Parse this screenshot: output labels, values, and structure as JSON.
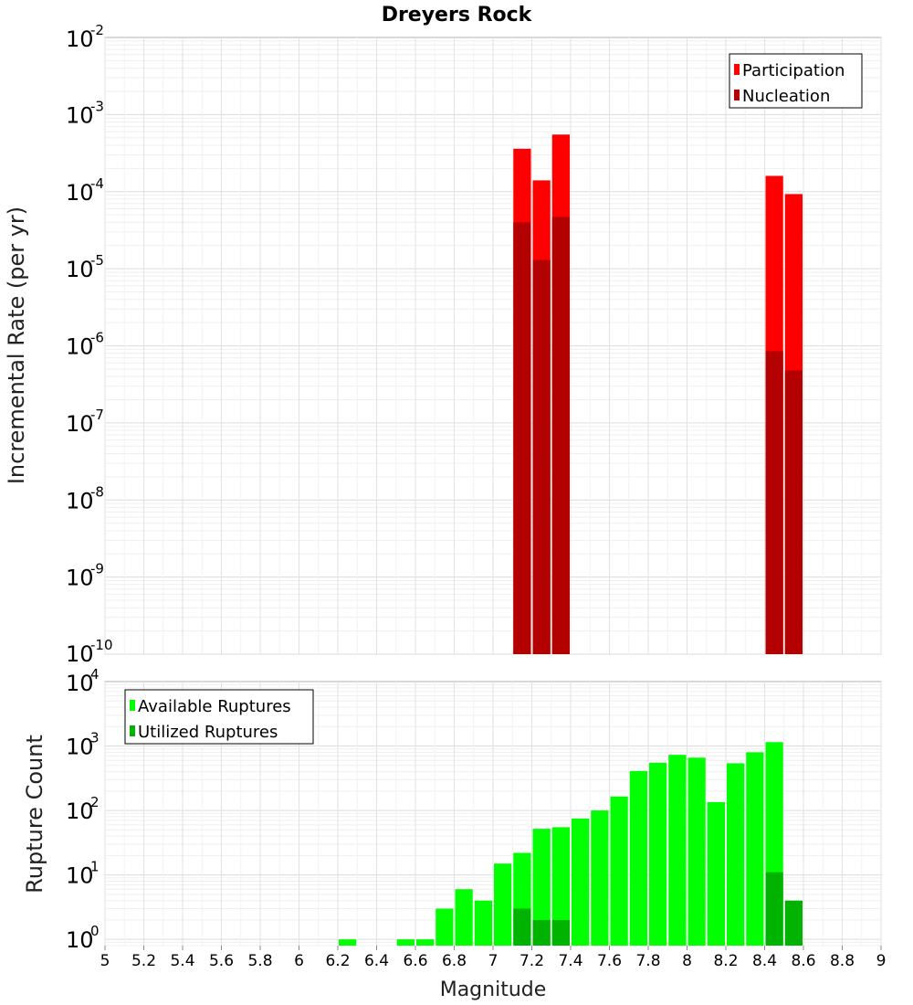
{
  "chart_data": [
    {
      "type": "bar",
      "title": "Dreyers Rock",
      "xlabel": "",
      "ylabel": "Incremental Rate (per yr)",
      "yscale": "log",
      "xlim": [
        5,
        9
      ],
      "ylim": [
        1e-10,
        0.01
      ],
      "y_ticks": [
        {
          "base": "10",
          "exp": "-2",
          "value": 0.01
        },
        {
          "base": "10",
          "exp": "-3",
          "value": 0.001
        },
        {
          "base": "10",
          "exp": "-4",
          "value": 0.0001
        },
        {
          "base": "10",
          "exp": "-5",
          "value": 1e-05
        },
        {
          "base": "10",
          "exp": "-6",
          "value": 1e-06
        },
        {
          "base": "10",
          "exp": "-7",
          "value": 1e-07
        },
        {
          "base": "10",
          "exp": "-8",
          "value": 1e-08
        },
        {
          "base": "10",
          "exp": "-9",
          "value": 1e-09
        },
        {
          "base": "10",
          "exp": "-10",
          "value": 1e-10
        }
      ],
      "grid": true,
      "legend_position": "top-right",
      "bin_width": 0.1,
      "series": [
        {
          "name": "Participation",
          "color": "#ff0000",
          "x": [
            7.15,
            7.25,
            7.35,
            8.45,
            8.55
          ],
          "values": [
            0.00036,
            0.00014,
            0.00055,
            0.00016,
            9.3e-05
          ]
        },
        {
          "name": "Nucleation",
          "color": "#b30000",
          "x": [
            7.15,
            7.25,
            7.35,
            8.45,
            8.55
          ],
          "values": [
            4e-05,
            1.3e-05,
            4.7e-05,
            8.5e-07,
            4.8e-07
          ]
        }
      ]
    },
    {
      "type": "bar",
      "xlabel": "Magnitude",
      "ylabel": "Rupture Count",
      "yscale": "log",
      "xlim": [
        5,
        9
      ],
      "ylim": [
        0.8,
        10000
      ],
      "y_ticks": [
        {
          "base": "10",
          "exp": "4",
          "value": 10000
        },
        {
          "base": "10",
          "exp": "3",
          "value": 1000
        },
        {
          "base": "10",
          "exp": "2",
          "value": 100
        },
        {
          "base": "10",
          "exp": "1",
          "value": 10
        },
        {
          "base": "10",
          "exp": "0",
          "value": 1
        }
      ],
      "x_ticks": [
        "5",
        "5.2",
        "5.4",
        "5.6",
        "5.8",
        "6",
        "6.2",
        "6.4",
        "6.6",
        "6.8",
        "7",
        "7.2",
        "7.4",
        "7.6",
        "7.8",
        "8",
        "8.2",
        "8.4",
        "8.6",
        "8.8",
        "9"
      ],
      "grid": true,
      "legend_position": "top-left",
      "bin_width": 0.1,
      "series": [
        {
          "name": "Available Ruptures",
          "color": "#00ff00",
          "x": [
            6.25,
            6.55,
            6.65,
            6.75,
            6.85,
            6.95,
            7.05,
            7.15,
            7.25,
            7.35,
            7.45,
            7.55,
            7.65,
            7.75,
            7.85,
            7.95,
            8.05,
            8.15,
            8.25,
            8.35,
            8.45
          ],
          "values": [
            1,
            1,
            1,
            3,
            6,
            4,
            15,
            22,
            52,
            55,
            75,
            100,
            165,
            410,
            550,
            730,
            660,
            135,
            540,
            800,
            1150
          ]
        },
        {
          "name": "Utilized Ruptures",
          "color": "#00b300",
          "x": [
            7.15,
            7.25,
            7.35,
            8.45,
            8.55
          ],
          "values": [
            3,
            2,
            2,
            11,
            4
          ]
        }
      ]
    }
  ]
}
